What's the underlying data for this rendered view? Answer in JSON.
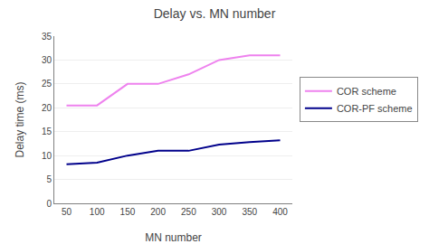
{
  "chart_data": {
    "type": "line",
    "title": "Delay vs. MN number",
    "xlabel": "MN number",
    "ylabel": "Delay time (ms)",
    "x": [
      50,
      100,
      150,
      200,
      250,
      300,
      350,
      400
    ],
    "series": [
      {
        "name": "COR scheme",
        "color": "#ee82ee",
        "values": [
          20.5,
          20.5,
          25,
          25,
          27,
          30,
          31,
          31
        ]
      },
      {
        "name": "COR-PF scheme",
        "color": "#00008b",
        "values": [
          8.2,
          8.5,
          10,
          11,
          11,
          12.3,
          12.8,
          13.2
        ]
      }
    ],
    "xlim": [
      30,
      420
    ],
    "xticks": [
      50,
      100,
      150,
      200,
      250,
      300,
      350,
      400
    ],
    "ylim": [
      0,
      35
    ],
    "yticks": [
      0,
      5,
      10,
      15,
      20,
      25,
      30,
      35
    ],
    "grid": "y",
    "legend": "right"
  }
}
